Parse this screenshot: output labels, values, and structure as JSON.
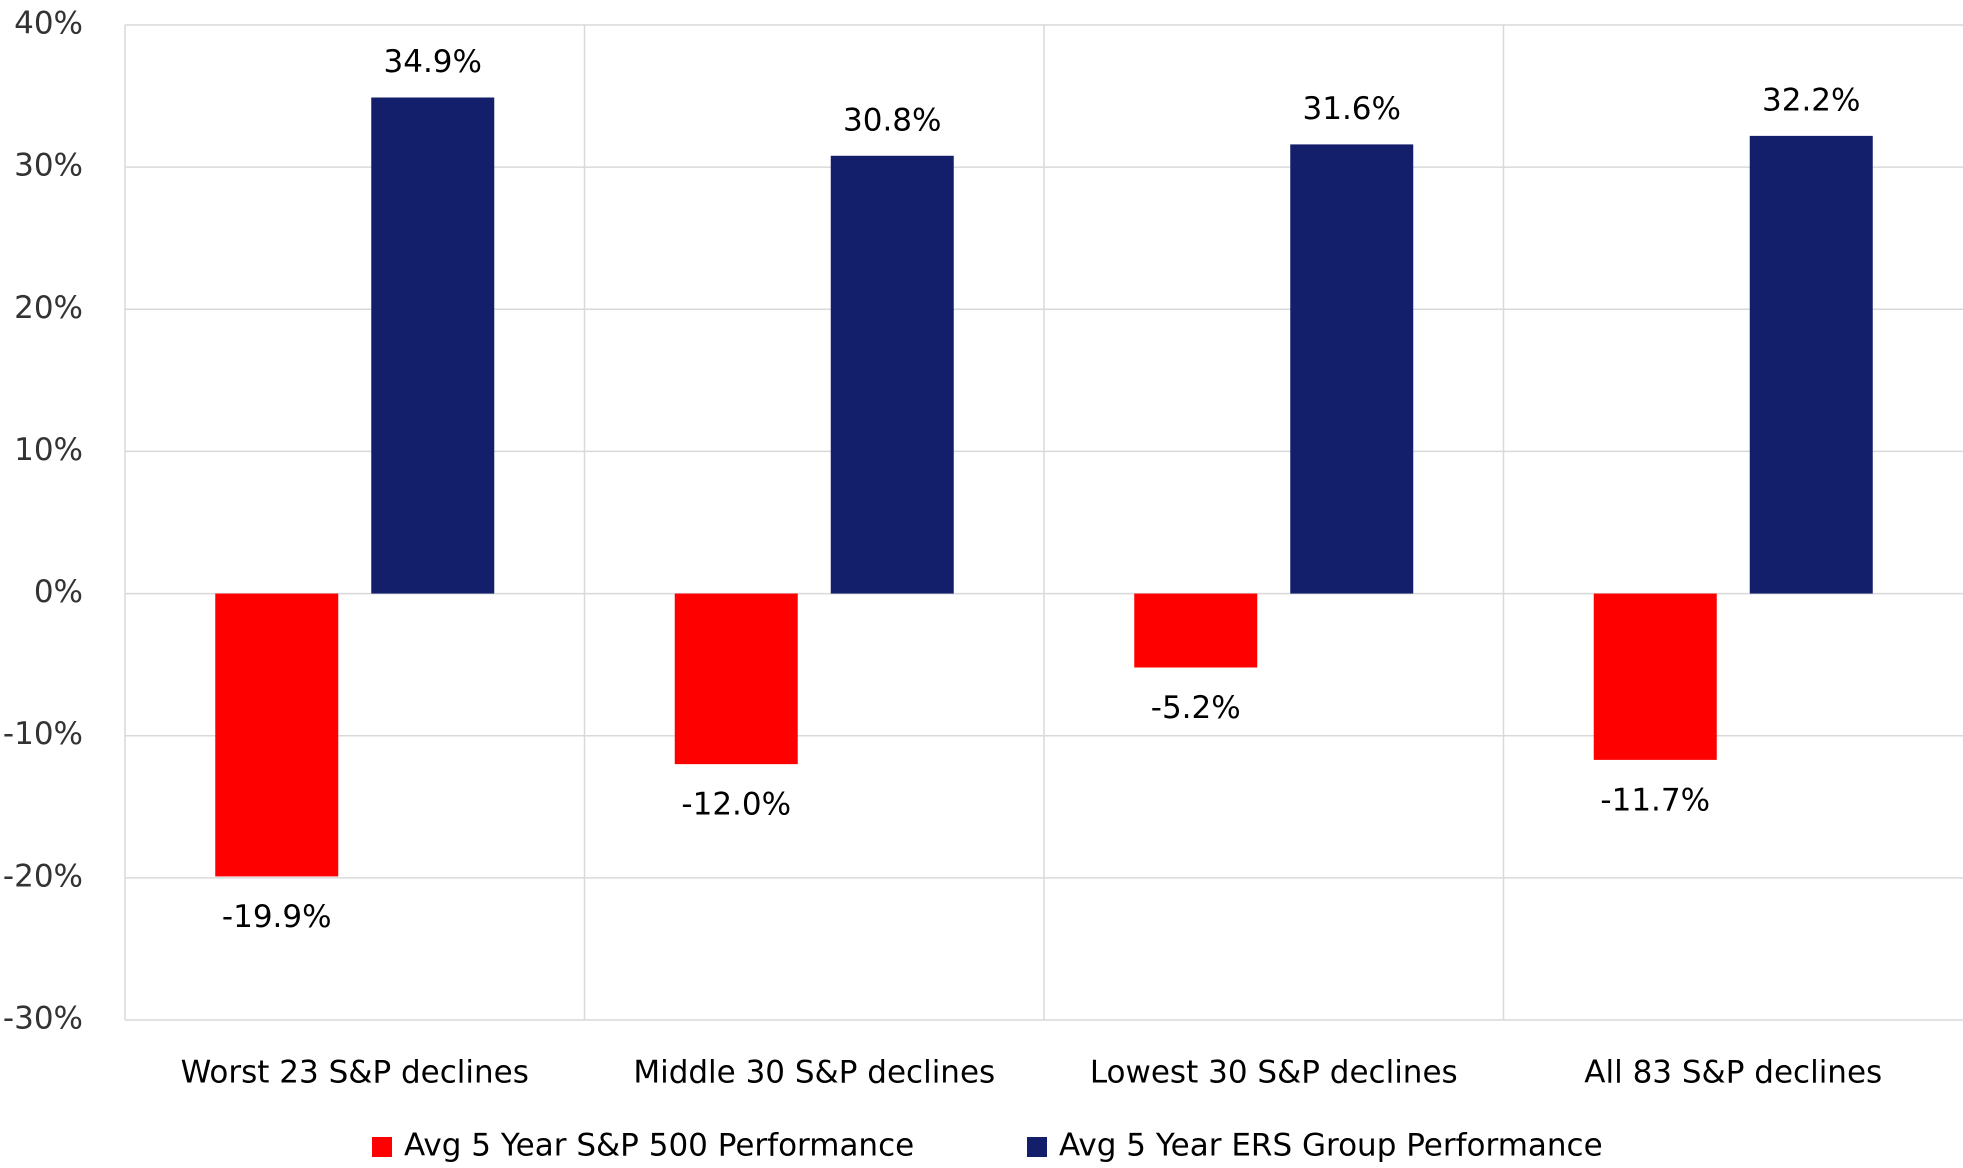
{
  "chart_data": {
    "type": "bar",
    "categories": [
      "Worst 23 S&P declines",
      "Middle 30 S&P declines",
      "Lowest 30 S&P declines",
      "All 83 S&P declines"
    ],
    "series": [
      {
        "name": "Avg 5 Year S&P 500 Performance",
        "color": "#ff0000",
        "values": [
          -19.9,
          -12.0,
          -5.2,
          -11.7
        ],
        "value_labels": [
          "-19.9%",
          "-12.0%",
          "-5.2%",
          "-11.7%"
        ]
      },
      {
        "name": "Avg 5 Year ERS Group Performance",
        "color": "#141f6b",
        "values": [
          34.9,
          30.8,
          31.6,
          32.2
        ],
        "value_labels": [
          "34.9%",
          "30.8%",
          "31.6%",
          "32.2%"
        ]
      }
    ],
    "ylim": [
      -30,
      40
    ],
    "yticks": [
      {
        "value": -30,
        "label": "-30%"
      },
      {
        "value": -20,
        "label": "-20%"
      },
      {
        "value": -10,
        "label": "-10%"
      },
      {
        "value": 0,
        "label": "0%"
      },
      {
        "value": 10,
        "label": "10%"
      },
      {
        "value": 20,
        "label": "20%"
      },
      {
        "value": 30,
        "label": "30%"
      },
      {
        "value": 40,
        "label": "40%"
      }
    ],
    "grid": true,
    "legend": "bottom"
  }
}
